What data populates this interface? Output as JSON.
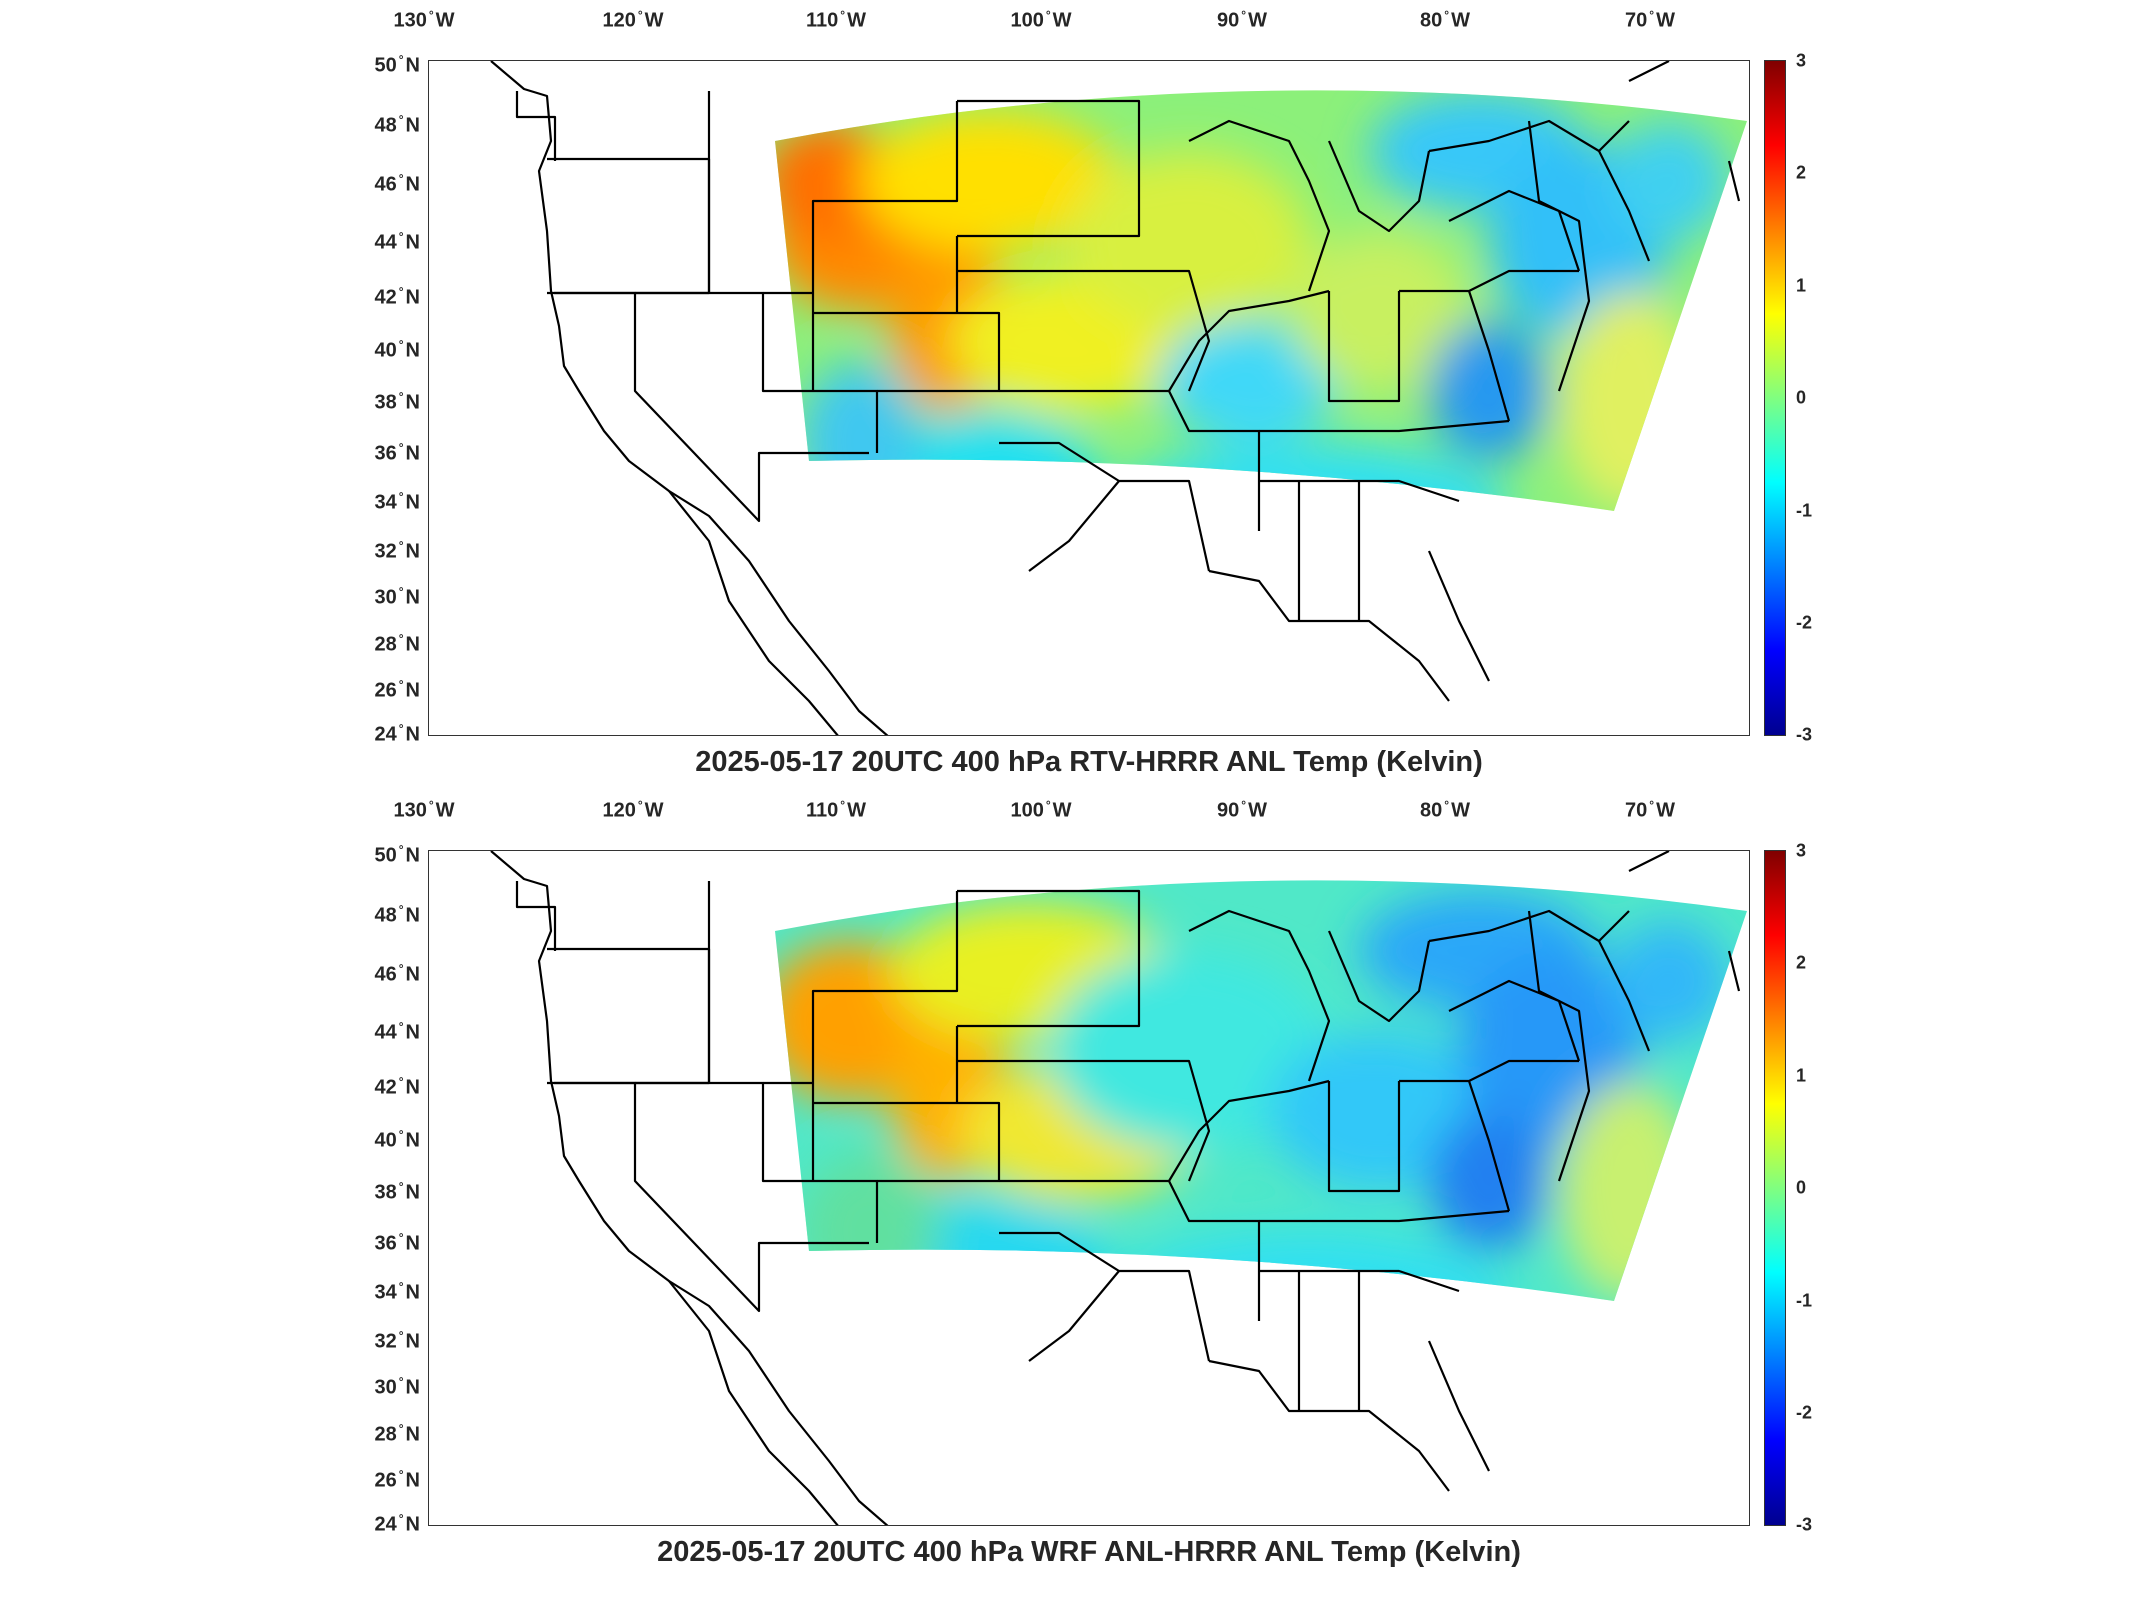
{
  "lon_labels": [
    {
      "deg": "130",
      "hem": "W"
    },
    {
      "deg": "120",
      "hem": "W"
    },
    {
      "deg": "110",
      "hem": "W"
    },
    {
      "deg": "100",
      "hem": "W"
    },
    {
      "deg": "90",
      "hem": "W"
    },
    {
      "deg": "80",
      "hem": "W"
    },
    {
      "deg": "70",
      "hem": "W"
    }
  ],
  "lat_labels": [
    {
      "deg": "50",
      "hem": "N"
    },
    {
      "deg": "48",
      "hem": "N"
    },
    {
      "deg": "46",
      "hem": "N"
    },
    {
      "deg": "44",
      "hem": "N"
    },
    {
      "deg": "42",
      "hem": "N"
    },
    {
      "deg": "40",
      "hem": "N"
    },
    {
      "deg": "38",
      "hem": "N"
    },
    {
      "deg": "36",
      "hem": "N"
    },
    {
      "deg": "34",
      "hem": "N"
    },
    {
      "deg": "32",
      "hem": "N"
    },
    {
      "deg": "30",
      "hem": "N"
    },
    {
      "deg": "28",
      "hem": "N"
    },
    {
      "deg": "26",
      "hem": "N"
    },
    {
      "deg": "24",
      "hem": "N"
    }
  ],
  "colorbar": {
    "min": -3,
    "max": 3,
    "ticks": [
      "3",
      "2",
      "1",
      "0",
      "-1",
      "-2",
      "-3"
    ],
    "colormap": "jet"
  },
  "colors": {
    "cold": "#0000ff",
    "cool": "#00ffff",
    "neutral": "#80ff80",
    "warm": "#ffff00",
    "hot": "#ff0000",
    "boundary": "#000000"
  },
  "panels": [
    {
      "title": "2025-05-17 20UTC 400 hPa RTV-HRRR ANL Temp (Kelvin)"
    },
    {
      "title": "2025-05-17 20UTC 400 hPa WRF ANL-HRRR ANL Temp (Kelvin)"
    }
  ]
}
